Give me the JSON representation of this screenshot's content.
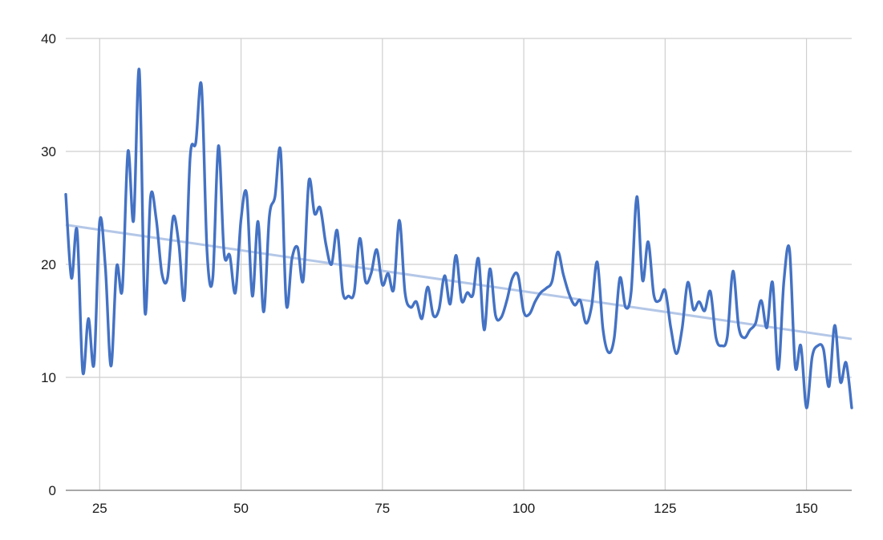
{
  "chart_data": {
    "type": "line",
    "title": "",
    "xlabel": "",
    "ylabel": "",
    "xlim": [
      19,
      158
    ],
    "ylim": [
      0,
      40
    ],
    "grid": true,
    "legend": "none",
    "x_ticks": [
      25,
      50,
      75,
      100,
      125,
      150
    ],
    "y_ticks": [
      0,
      10,
      20,
      30,
      40
    ],
    "x_tick_labels": [
      "25",
      "50",
      "75",
      "100",
      "125",
      "150"
    ],
    "y_tick_labels": [
      "0",
      "10",
      "20",
      "30",
      "40"
    ],
    "series": [
      {
        "style": "smooth",
        "color": "#4472c4",
        "x": [
          19,
          20,
          21,
          22,
          23,
          24,
          25,
          26,
          27,
          28,
          29,
          30,
          31,
          32,
          33,
          34,
          35,
          36,
          37,
          38,
          39,
          40,
          41,
          42,
          43,
          44,
          45,
          46,
          47,
          48,
          49,
          50,
          51,
          52,
          53,
          54,
          55,
          56,
          57,
          58,
          59,
          60,
          61,
          62,
          63,
          64,
          65,
          66,
          67,
          68,
          69,
          70,
          71,
          72,
          73,
          74,
          75,
          76,
          77,
          78,
          79,
          80,
          81,
          82,
          83,
          84,
          85,
          86,
          87,
          88,
          89,
          90,
          91,
          92,
          93,
          94,
          95,
          96,
          97,
          98,
          99,
          100,
          101,
          102,
          103,
          104,
          105,
          106,
          107,
          108,
          109,
          110,
          111,
          112,
          113,
          114,
          115,
          116,
          117,
          118,
          119,
          120,
          121,
          122,
          123,
          124,
          125,
          126,
          127,
          128,
          129,
          130,
          131,
          132,
          133,
          134,
          135,
          136,
          137,
          138,
          139,
          140,
          141,
          142,
          143,
          144,
          145,
          146,
          147,
          148,
          149,
          150,
          151,
          152,
          153,
          154,
          155,
          156,
          157,
          158
        ],
        "values": [
          26.2,
          18.8,
          23,
          10.5,
          15.2,
          11.2,
          23.8,
          19.8,
          11,
          19.8,
          17.8,
          30,
          23.9,
          37.2,
          15.8,
          26,
          24,
          19.2,
          18.8,
          24.2,
          21.8,
          17,
          29.5,
          30.8,
          35.8,
          21,
          18.8,
          30.5,
          21,
          20.8,
          17.5,
          24,
          26.2,
          17.2,
          23.8,
          15.8,
          24.2,
          26,
          30,
          16.5,
          20.5,
          21.5,
          18.6,
          27.4,
          24.5,
          25,
          21.8,
          20,
          23,
          17.5,
          17.2,
          17.5,
          22.3,
          18.5,
          19.2,
          21.3,
          18.2,
          19.2,
          17.8,
          23.9,
          17.5,
          16.2,
          16.7,
          15.2,
          18,
          15.5,
          16,
          19,
          16.5,
          20.8,
          16.8,
          17.5,
          17.3,
          20.5,
          14.2,
          19.6,
          15.5,
          15.3,
          16.8,
          18.8,
          19,
          15.8,
          15.6,
          16.7,
          17.5,
          17.9,
          18.5,
          21.1,
          19.1,
          17.4,
          16.4,
          16.8,
          14.8,
          16.3,
          20.2,
          14.3,
          12.2,
          13.5,
          18.8,
          16.2,
          17.6,
          26,
          18.6,
          22,
          17.3,
          16.8,
          17.7,
          14.4,
          12.1,
          14.3,
          18.4,
          16,
          16.7,
          15.9,
          17.6,
          13.5,
          12.8,
          13.6,
          19.4,
          14.5,
          13.5,
          14.2,
          14.8,
          16.8,
          14.4,
          18.4,
          10.7,
          18.5,
          21.3,
          11,
          12.8,
          7.3,
          11.8,
          12.8,
          12.5,
          9.2,
          14.6,
          9.6,
          11.3,
          7.3
        ]
      },
      {
        "style": "trendline",
        "color": "#b4c7e7",
        "x": [
          19,
          158
        ],
        "values": [
          23.5,
          13.4
        ]
      }
    ]
  }
}
